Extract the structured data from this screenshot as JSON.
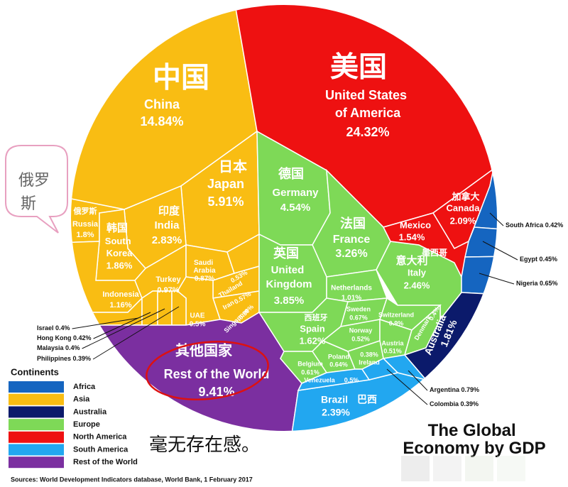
{
  "chart_data": {
    "type": "voronoi",
    "title": "The Global Economy by GDP",
    "source": "Sources: World Development Indicators database, World Bank, 1 February 2017",
    "categories": [
      "China",
      "United States of America",
      "Japan",
      "India",
      "Russia",
      "South Korea",
      "Indonesia",
      "Turkey",
      "Saudi Arabia",
      "Thailand",
      "Iran",
      "Singapore",
      "UAE",
      "Israel",
      "Hong Kong",
      "Malaysia",
      "Philippines",
      "Rest of the World",
      "Germany",
      "France",
      "United Kingdom",
      "Italy",
      "Netherlands",
      "Spain",
      "Sweden",
      "Switzerland",
      "Norway",
      "Austria",
      "Denmark",
      "Poland",
      "Ireland",
      "Belgium",
      "Canada",
      "Mexico",
      "South Africa",
      "Egypt",
      "Nigeria",
      "Australia",
      "Brazil",
      "Venezuela",
      "Argentina",
      "Colombia"
    ],
    "local_names": [
      "中国",
      "美国",
      "日本",
      "印度",
      "俄罗斯",
      "韩国",
      null,
      null,
      null,
      null,
      null,
      null,
      null,
      null,
      null,
      null,
      null,
      "其他国家",
      "德国",
      "法国",
      "英国",
      "意大利",
      null,
      "西班牙",
      null,
      null,
      null,
      null,
      null,
      null,
      null,
      null,
      "加拿大",
      "墨西哥",
      null,
      null,
      null,
      null,
      "巴西",
      null,
      null,
      null
    ],
    "values": [
      14.84,
      24.32,
      5.91,
      2.83,
      1.8,
      1.86,
      1.16,
      0.97,
      0.87,
      0.53,
      0.57,
      0.39,
      0.5,
      0.4,
      0.42,
      0.4,
      0.39,
      9.41,
      4.54,
      3.26,
      3.85,
      2.46,
      1.01,
      1.62,
      0.67,
      0.9,
      0.52,
      0.51,
      0.4,
      0.64,
      0.38,
      0.61,
      2.09,
      1.54,
      0.42,
      0.45,
      0.65,
      1.81,
      2.39,
      0.5,
      0.79,
      0.39
    ],
    "value_labels": [
      "14.84%",
      "24.32%",
      "5.91%",
      "2.83%",
      "1.8%",
      "1.86%",
      "1.16%",
      "0.97%",
      "0.87%",
      "0.53%",
      "0.57%",
      "0.39%",
      "0.5%",
      "0.4%",
      "0.42%",
      "0.4%",
      "0.39%",
      "9.41%",
      "4.54%",
      "3.26%",
      "3.85%",
      "2.46%",
      "1.01%",
      "1.62%",
      "0.67%",
      "0.9%",
      "0.52%",
      "0.51%",
      "0.4%",
      "0.64%",
      "0.38%",
      "0.61%",
      "2.09%",
      "1.54%",
      "0.42%",
      "0.45%",
      "0.65%",
      "1.81%",
      "2.39%",
      "0.5%",
      "0.79%",
      "0.39%"
    ],
    "groups": [
      1,
      4,
      1,
      1,
      1,
      1,
      1,
      1,
      1,
      1,
      1,
      1,
      1,
      1,
      1,
      1,
      1,
      6,
      3,
      3,
      3,
      3,
      3,
      3,
      3,
      3,
      3,
      3,
      3,
      3,
      3,
      3,
      4,
      4,
      0,
      0,
      0,
      2,
      5,
      5,
      5,
      5
    ],
    "legend_title": "Continents",
    "group_names": [
      "Africa",
      "Asia",
      "Australia",
      "Europe",
      "North America",
      "South America",
      "Rest of the World"
    ],
    "group_colors": [
      "#1565c0",
      "#f9bd13",
      "#0b1a6b",
      "#7ed957",
      "#ee1111",
      "#22a7f0",
      "#7b2fa0"
    ]
  },
  "annotations": {
    "callout": "俄罗斯",
    "comment": "毫无存在感。"
  }
}
